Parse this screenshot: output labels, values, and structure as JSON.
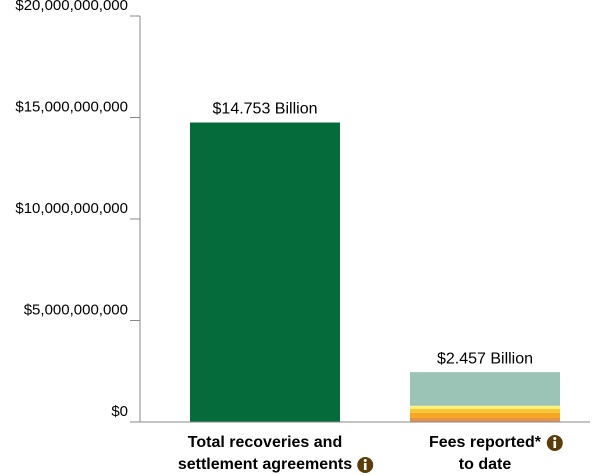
{
  "chart_data": {
    "type": "stacked_bar",
    "categories": [
      [
        "Total recoveries and",
        "settlement agreements"
      ],
      [
        "Fees reported*",
        "to date"
      ]
    ],
    "series": [
      {
        "color": "#066b3a",
        "values": [
          14753000000,
          null
        ]
      },
      {
        "color": "#e8914a",
        "values": [
          null,
          200000000
        ]
      },
      {
        "color": "#f5a623",
        "values": [
          null,
          250000000
        ]
      },
      {
        "color": "#fbc531",
        "values": [
          null,
          200000000
        ]
      },
      {
        "color": "#fff27a",
        "values": [
          null,
          150000000
        ]
      },
      {
        "color": "#9cc4b6",
        "values": [
          null,
          1657000000
        ]
      }
    ],
    "totals": [
      14753000000,
      2457000000
    ],
    "total_labels": [
      "$14.753 Billion",
      "$2.457 Billion"
    ],
    "ylim": [
      0,
      20000000000
    ],
    "yticks": [
      {
        "value": 0,
        "label": "$0"
      },
      {
        "value": 5000000000,
        "label": "$5,000,000,000"
      },
      {
        "value": 10000000000,
        "label": "$10,000,000,000"
      },
      {
        "value": 15000000000,
        "label": "$15,000,000,000"
      },
      {
        "value": 20000000000,
        "label": "$20,000,000,000"
      }
    ]
  }
}
